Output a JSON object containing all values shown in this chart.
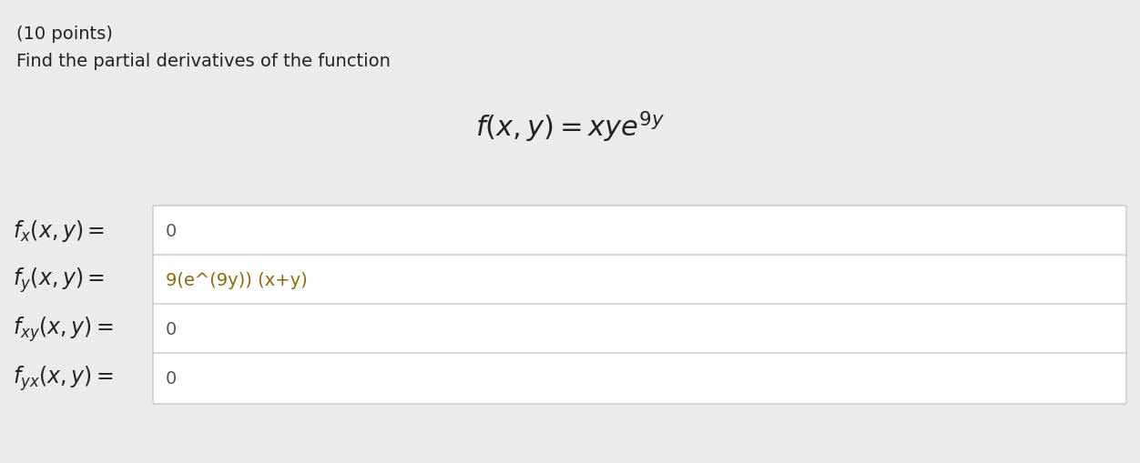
{
  "background_color": "#ebebeb",
  "title_line1": "(10 points)",
  "title_line2": "Find the partial derivatives of the function",
  "function_latex": "$f(x, y) = xye^{9y}$",
  "rows": [
    {
      "label_latex": "$f_x(x, y) =$",
      "answer_text": "0",
      "answer_color": "#555555"
    },
    {
      "label_latex": "$f_y(x, y) =$",
      "answer_text": "9(e^(9y)) (x+y)",
      "answer_color": "#8b6914"
    },
    {
      "label_latex": "$f_{xy}(x, y) =$",
      "answer_text": "0",
      "answer_color": "#555555"
    },
    {
      "label_latex": "$f_{yx}(x, y) =$",
      "answer_text": "0",
      "answer_color": "#555555"
    }
  ],
  "text_color": "#222222",
  "box_bg": "#ffffff",
  "box_edge": "#c8c8c8",
  "title_fontsize": 14,
  "label_fontsize": 17,
  "answer_fontsize": 14,
  "func_fontsize": 22
}
